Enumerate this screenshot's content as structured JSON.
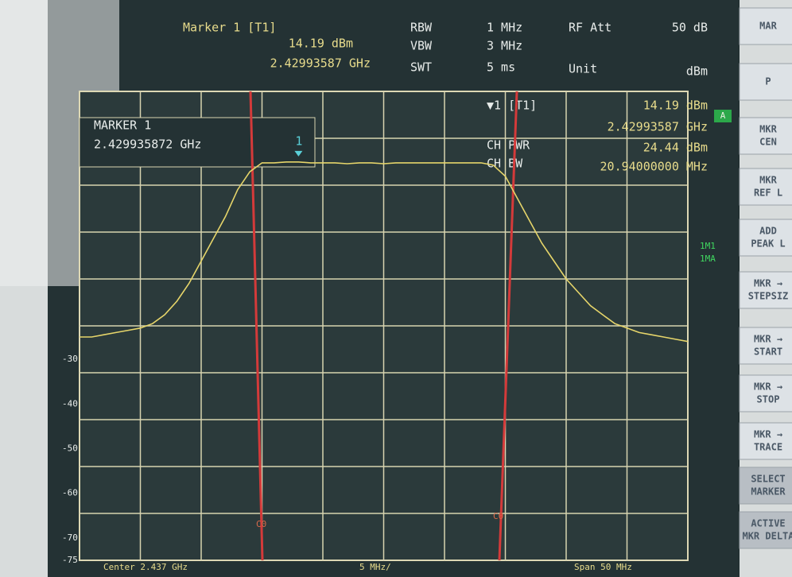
{
  "header": {
    "marker": "Marker 1 [T1]",
    "level": "14.19 dBm",
    "freq": "2.42993587 GHz",
    "rbw_label": "RBW",
    "rbw": "1 MHz",
    "vbw_label": "VBW",
    "vbw": "3 MHz",
    "swt_label": "SWT",
    "swt": "5 ms",
    "att_label": "RF Att",
    "att": "50 dB",
    "unit_label": "Unit",
    "unit": "dBm"
  },
  "marker_box": {
    "title": "MARKER 1",
    "value": "2.429935872 GHz"
  },
  "readout": {
    "marker": "▼1 [T1]",
    "level": "14.19 dBm",
    "freq": "2.42993587 GHz",
    "ch_pwr_label": "CH PWR",
    "ch_pwr": "24.44 dBm",
    "ch_bw_label": "CH BW",
    "ch_bw": "20.94000000 MHz"
  },
  "footer": {
    "center": "Center 2.437 GHz",
    "div": "5 MHz/",
    "span": "Span 50 MHz"
  },
  "channel_labels": [
    "C0",
    "C0"
  ],
  "side_labels": [
    "A",
    "1M1",
    "1MA"
  ],
  "softkeys": [
    [
      "MAR"
    ],
    [
      "P"
    ],
    [
      "MKR",
      "CEN"
    ],
    [
      "MKR",
      "REF L"
    ],
    [
      "ADD",
      "PEAK L"
    ],
    [
      "MKR →",
      "STEPSIZ"
    ],
    [
      "MKR →",
      "START"
    ],
    [
      "MKR →",
      "STOP"
    ],
    [
      "MKR →",
      "TRACE"
    ],
    [
      "SELECT",
      "MARKER"
    ],
    [
      "ACTIVE",
      "MKR DELTA"
    ]
  ],
  "chart_data": {
    "type": "line",
    "x": [
      2412,
      2413,
      2414,
      2415,
      2416,
      2417,
      2418,
      2419,
      2420,
      2421,
      2422,
      2423,
      2424,
      2425,
      2426,
      2427,
      2428,
      2429,
      2430,
      2431,
      2432,
      2433,
      2434,
      2435,
      2436,
      2437,
      2438,
      2439,
      2440,
      2441,
      2442,
      2443,
      2444,
      2445,
      2446,
      2447,
      2448,
      2449,
      2450,
      2451,
      2452,
      2453,
      2454,
      2455,
      2456,
      2457,
      2458,
      2459,
      2460,
      2461,
      2462
    ],
    "series": [
      {
        "color": "#e6d56a",
        "values": [
          -25,
          -25,
          -24.5,
          -24,
          -23.5,
          -23,
          -22,
          -20,
          -17,
          -13,
          -8,
          -3,
          2,
          8,
          12,
          14,
          14,
          14.2,
          14.19,
          14,
          14,
          14,
          13.8,
          14,
          14,
          13.8,
          14,
          14,
          14,
          14,
          14,
          14,
          14,
          14,
          13.5,
          11,
          6,
          1,
          -4,
          -8,
          -12,
          -15,
          -18,
          -20,
          -22,
          -23,
          -24,
          -24.5,
          -25,
          -25.5,
          -26
        ]
      }
    ],
    "xlim": [
      2412,
      2462
    ],
    "ylim": [
      -75,
      30
    ],
    "yticks": [
      -30,
      -40,
      -50,
      -60,
      -70,
      -75
    ],
    "marker_label": "1"
  }
}
